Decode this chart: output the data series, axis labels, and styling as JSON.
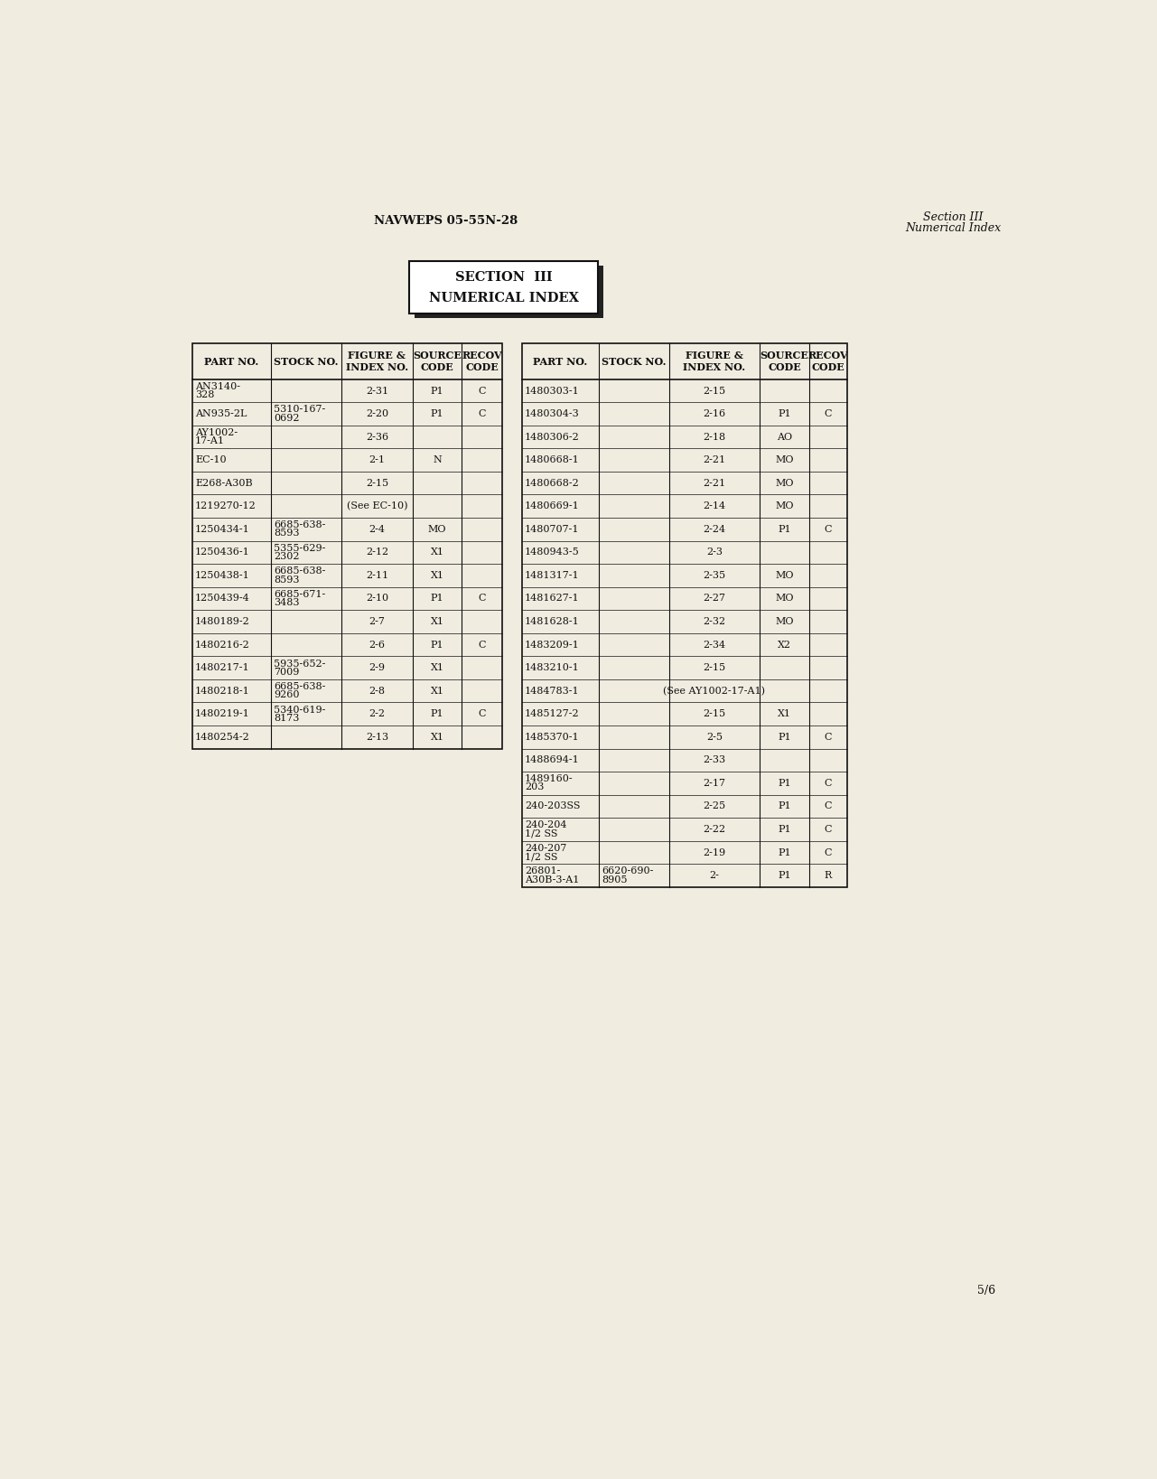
{
  "page_header_left": "NAVWEPS 05-55N-28",
  "page_header_right_line1": "Section III",
  "page_header_right_line2": "Numerical Index",
  "section_title_line1": "SECTION  III",
  "section_title_line2": "NUMERICAL INDEX",
  "page_number": "5/6",
  "bg_color": "#f0ece0",
  "left_entries": [
    {
      "part": "AN3140-\n328",
      "stock": "",
      "fig": "2-31",
      "src": "P1",
      "rec": "C"
    },
    {
      "part": "AN935-2L",
      "stock": "5310-167-\n0692",
      "fig": "2-20",
      "src": "P1",
      "rec": "C"
    },
    {
      "part": "AY1002-\n17-A1",
      "stock": "",
      "fig": "2-36",
      "src": "",
      "rec": ""
    },
    {
      "part": "EC-10",
      "stock": "",
      "fig": "2-1",
      "src": "N",
      "rec": ""
    },
    {
      "part": "E268-A30B",
      "stock": "",
      "fig": "2-15",
      "src": "",
      "rec": ""
    },
    {
      "part": "1219270-12",
      "stock": "",
      "fig": "(See EC-10)",
      "src": "",
      "rec": ""
    },
    {
      "part": "1250434-1",
      "stock": "6685-638-\n8593",
      "fig": "2-4",
      "src": "MO",
      "rec": ""
    },
    {
      "part": "1250436-1",
      "stock": "5355-629-\n2302",
      "fig": "2-12",
      "src": "X1",
      "rec": ""
    },
    {
      "part": "1250438-1",
      "stock": "6685-638-\n8593",
      "fig": "2-11",
      "src": "X1",
      "rec": ""
    },
    {
      "part": "1250439-4",
      "stock": "6685-671-\n3483",
      "fig": "2-10",
      "src": "P1",
      "rec": "C"
    },
    {
      "part": "1480189-2",
      "stock": "",
      "fig": "2-7",
      "src": "X1",
      "rec": ""
    },
    {
      "part": "1480216-2",
      "stock": "",
      "fig": "2-6",
      "src": "P1",
      "rec": "C"
    },
    {
      "part": "1480217-1",
      "stock": "5935-652-\n7009",
      "fig": "2-9",
      "src": "X1",
      "rec": ""
    },
    {
      "part": "1480218-1",
      "stock": "6685-638-\n9260",
      "fig": "2-8",
      "src": "X1",
      "rec": ""
    },
    {
      "part": "1480219-1",
      "stock": "5340-619-\n8173",
      "fig": "2-2",
      "src": "P1",
      "rec": "C"
    },
    {
      "part": "1480254-2",
      "stock": "",
      "fig": "2-13",
      "src": "X1",
      "rec": ""
    }
  ],
  "right_entries": [
    {
      "part": "1480303-1",
      "stock": "",
      "fig": "2-15",
      "src": "",
      "rec": ""
    },
    {
      "part": "1480304-3",
      "stock": "",
      "fig": "2-16",
      "src": "P1",
      "rec": "C"
    },
    {
      "part": "1480306-2",
      "stock": "",
      "fig": "2-18",
      "src": "AO",
      "rec": ""
    },
    {
      "part": "1480668-1",
      "stock": "",
      "fig": "2-21",
      "src": "MO",
      "rec": ""
    },
    {
      "part": "1480668-2",
      "stock": "",
      "fig": "2-21",
      "src": "MO",
      "rec": ""
    },
    {
      "part": "1480669-1",
      "stock": "",
      "fig": "2-14",
      "src": "MO",
      "rec": ""
    },
    {
      "part": "1480707-1",
      "stock": "",
      "fig": "2-24",
      "src": "P1",
      "rec": "C"
    },
    {
      "part": "1480943-5",
      "stock": "",
      "fig": "2-3",
      "src": "",
      "rec": ""
    },
    {
      "part": "1481317-1",
      "stock": "",
      "fig": "2-35",
      "src": "MO",
      "rec": ""
    },
    {
      "part": "1481627-1",
      "stock": "",
      "fig": "2-27",
      "src": "MO",
      "rec": ""
    },
    {
      "part": "1481628-1",
      "stock": "",
      "fig": "2-32",
      "src": "MO",
      "rec": ""
    },
    {
      "part": "1483209-1",
      "stock": "",
      "fig": "2-34",
      "src": "X2",
      "rec": ""
    },
    {
      "part": "1483210-1",
      "stock": "",
      "fig": "2-15",
      "src": "",
      "rec": ""
    },
    {
      "part": "1484783-1",
      "stock": "",
      "fig": "(See AY1002-17-A1)",
      "src": "",
      "rec": ""
    },
    {
      "part": "1485127-2",
      "stock": "",
      "fig": "2-15",
      "src": "X1",
      "rec": ""
    },
    {
      "part": "1485370-1",
      "stock": "",
      "fig": "2-5",
      "src": "P1",
      "rec": "C"
    },
    {
      "part": "1488694-1",
      "stock": "",
      "fig": "2-33",
      "src": "",
      "rec": ""
    },
    {
      "part": "1489160-\n203",
      "stock": "",
      "fig": "2-17",
      "src": "P1",
      "rec": "C"
    },
    {
      "part": "240-203SS",
      "stock": "",
      "fig": "2-25",
      "src": "P1",
      "rec": "C"
    },
    {
      "part": "240-204\n1/2 SS",
      "stock": "",
      "fig": "2-22",
      "src": "P1",
      "rec": "C"
    },
    {
      "part": "240-207\n1/2 SS",
      "stock": "",
      "fig": "2-19",
      "src": "P1",
      "rec": "C"
    },
    {
      "part": "26801-\nA30B-3-A1",
      "stock": "6620-690-\n8905",
      "fig": "2-",
      "src": "P1",
      "rec": "R"
    }
  ]
}
